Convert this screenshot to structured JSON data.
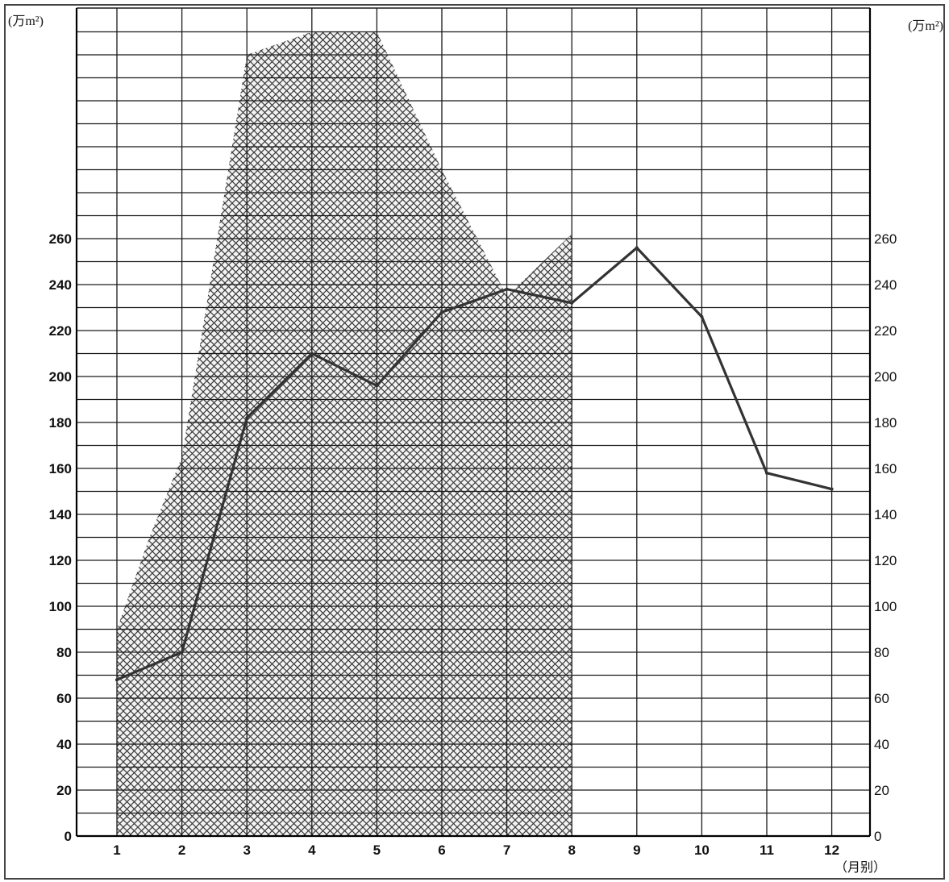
{
  "chart_data": {
    "type": "area",
    "title": "",
    "xlabel": "（月别）",
    "ylabel_left": "(万m²)",
    "ylabel_right": "(万m²)",
    "categories": [
      "1",
      "2",
      "3",
      "4",
      "5",
      "6",
      "7",
      "8",
      "9",
      "10",
      "11",
      "12"
    ],
    "x": [
      1,
      2,
      3,
      4,
      5,
      6,
      7,
      8,
      9,
      10,
      11,
      12
    ],
    "y_ticks_left": [
      "0",
      "20",
      "40",
      "60",
      "80",
      "100",
      "120",
      "140",
      "160",
      "180",
      "200",
      "220",
      "240",
      "260"
    ],
    "y_ticks_right": [
      "0",
      "20",
      "40",
      "60",
      "80",
      "100",
      "120",
      "140",
      "160",
      "180",
      "200",
      "220",
      "240",
      "260"
    ],
    "ylim": [
      0,
      365
    ],
    "grid": true,
    "series": [
      {
        "kind": "area",
        "fill_pattern": "crosshatch",
        "x": [
          1,
          1.5,
          2,
          3,
          4,
          5,
          6,
          7,
          8
        ],
        "values": [
          90,
          130,
          165,
          340,
          350,
          350,
          290,
          235,
          262
        ]
      },
      {
        "kind": "line",
        "x": [
          1,
          2,
          3,
          4,
          5,
          6,
          7,
          8,
          9,
          10,
          11,
          12
        ],
        "values": [
          68,
          80,
          182,
          210,
          196,
          228,
          238,
          232,
          256,
          226,
          158,
          151
        ]
      }
    ],
    "colors": {
      "grid": "#1a1a1a",
      "line": "#333333",
      "hatch": "#3a3a3a"
    }
  }
}
